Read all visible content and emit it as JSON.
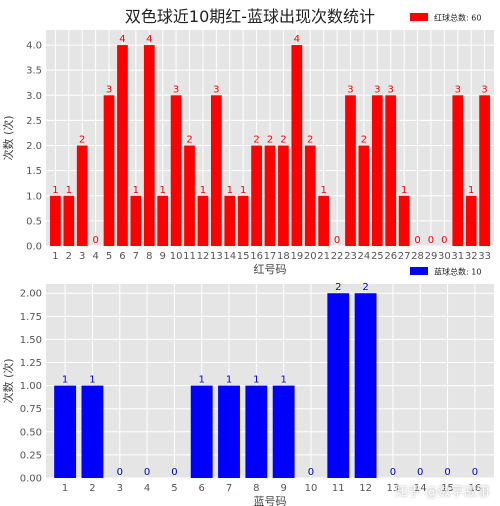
{
  "title": "双色球近10期红-蓝球出现次数统计",
  "watermark": "知乎 @数字故事",
  "chart_data": [
    {
      "type": "bar",
      "color": "#ff0000",
      "label_color": "#ff0000",
      "legend": "红球总数: 60",
      "legend_position": "top-right",
      "xlabel": "红号码",
      "ylabel": "次数 (次)",
      "ylim": [
        0,
        4.3
      ],
      "yticks": [
        "0.0",
        "0.5",
        "1.0",
        "1.5",
        "2.0",
        "2.5",
        "3.0",
        "3.5",
        "4.0"
      ],
      "grid": true,
      "categories": [
        "1",
        "2",
        "3",
        "4",
        "5",
        "6",
        "7",
        "8",
        "9",
        "10",
        "11",
        "12",
        "13",
        "14",
        "15",
        "16",
        "17",
        "18",
        "19",
        "20",
        "21",
        "22",
        "23",
        "24",
        "25",
        "26",
        "27",
        "28",
        "29",
        "30",
        "31",
        "32",
        "33"
      ],
      "values": [
        1,
        1,
        2,
        0,
        3,
        4,
        1,
        4,
        1,
        3,
        2,
        1,
        3,
        1,
        1,
        2,
        2,
        2,
        4,
        2,
        1,
        0,
        3,
        2,
        3,
        3,
        1,
        0,
        0,
        0,
        3,
        1,
        3
      ]
    },
    {
      "type": "bar",
      "color": "#0000ff",
      "label_color": "#0000cc",
      "legend": "蓝球总数: 10",
      "legend_position": "top-right",
      "xlabel": "蓝号码",
      "ylabel": "次数 (次)",
      "ylim": [
        0,
        2.1
      ],
      "yticks": [
        "0.00",
        "0.25",
        "0.50",
        "0.75",
        "1.00",
        "1.25",
        "1.50",
        "1.75",
        "2.00"
      ],
      "grid": true,
      "categories": [
        "1",
        "2",
        "3",
        "4",
        "5",
        "6",
        "7",
        "8",
        "9",
        "10",
        "11",
        "12",
        "13",
        "14",
        "15",
        "16"
      ],
      "values": [
        1,
        1,
        0,
        0,
        0,
        1,
        1,
        1,
        1,
        0,
        2,
        2,
        0,
        0,
        0,
        0
      ]
    }
  ]
}
